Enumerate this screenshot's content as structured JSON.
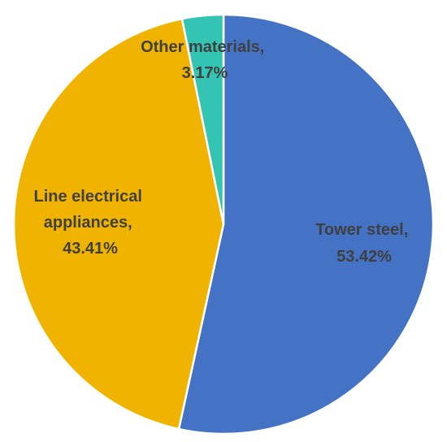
{
  "chart_data": {
    "type": "pie",
    "title": "",
    "slices": [
      {
        "category": "Tower steel",
        "percent_label": "53.42%",
        "value": 53.42,
        "color": "#4472C4"
      },
      {
        "category": "Line electrical appliances",
        "percent_label": "43.41%",
        "value": 43.41,
        "color": "#F0B400"
      },
      {
        "category": "Other materials",
        "percent_label": "3.17%",
        "value": 3.17,
        "color": "#33C4B4"
      }
    ],
    "labels": [
      {
        "lines": [
          "Tower steel,",
          "53.42%"
        ],
        "color": "#404040"
      },
      {
        "lines": [
          "Line electrical",
          "appliances,",
          "43.41%"
        ],
        "color": "#404040"
      },
      {
        "lines": [
          "Other materials,",
          "3.17%"
        ],
        "color": "#404040"
      }
    ],
    "start": "12 o'clock",
    "direction": "clockwise",
    "legend": "none (data labels on slices)"
  }
}
